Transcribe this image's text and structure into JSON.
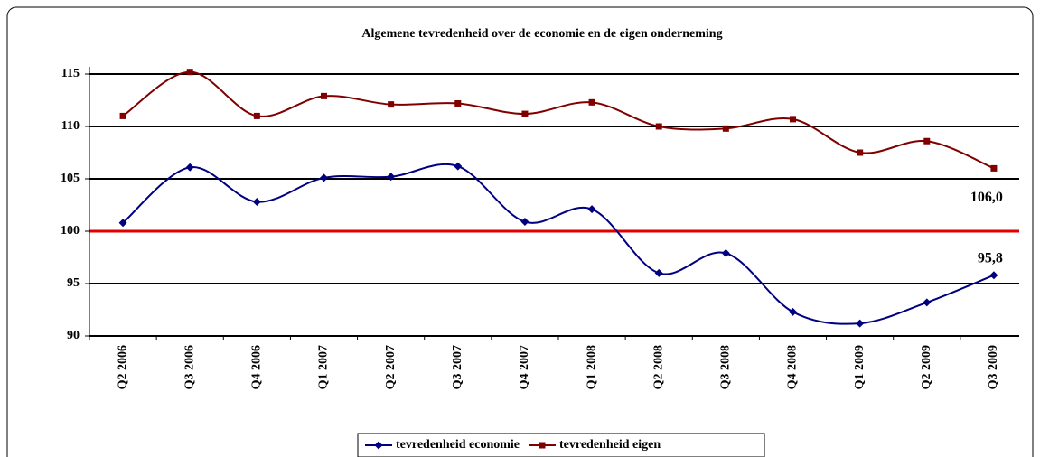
{
  "chart_data": {
    "type": "line",
    "title": "Algemene tevredenheid over de economie en de eigen onderneming",
    "categories": [
      "Q2 2006",
      "Q3 2006",
      "Q4 2006",
      "Q1 2007",
      "Q2 2007",
      "Q3 2007",
      "Q4 2007",
      "Q1 2008",
      "Q2 2008",
      "Q3 2008",
      "Q4 2008",
      "Q1 2009",
      "Q2 2009",
      "Q3 2009"
    ],
    "series": [
      {
        "name": "tevredenheid economie",
        "color": "#000080",
        "marker": "diamond",
        "values": [
          100.8,
          106.1,
          102.8,
          105.1,
          105.2,
          106.2,
          100.9,
          102.1,
          96.0,
          97.9,
          92.3,
          91.2,
          93.2,
          95.8
        ],
        "value_labels": [
          null,
          null,
          null,
          null,
          null,
          null,
          null,
          null,
          null,
          null,
          null,
          null,
          null,
          "95,8"
        ]
      },
      {
        "name": "tevredenheid eigen",
        "color": "#800000",
        "marker": "square",
        "values": [
          111.0,
          115.2,
          111.0,
          112.9,
          112.1,
          112.2,
          111.2,
          112.3,
          110.0,
          109.8,
          110.7,
          107.5,
          108.6,
          106.0
        ],
        "value_labels": [
          null,
          null,
          null,
          null,
          null,
          null,
          null,
          null,
          null,
          null,
          null,
          null,
          null,
          "106,0"
        ]
      }
    ],
    "ylim": [
      90,
      115
    ],
    "yticks": [
      90,
      95,
      100,
      105,
      110,
      115
    ],
    "grid": true,
    "reference_line": {
      "value": 100,
      "color": "#e00000"
    },
    "smooth": true,
    "legend": "bottom"
  }
}
